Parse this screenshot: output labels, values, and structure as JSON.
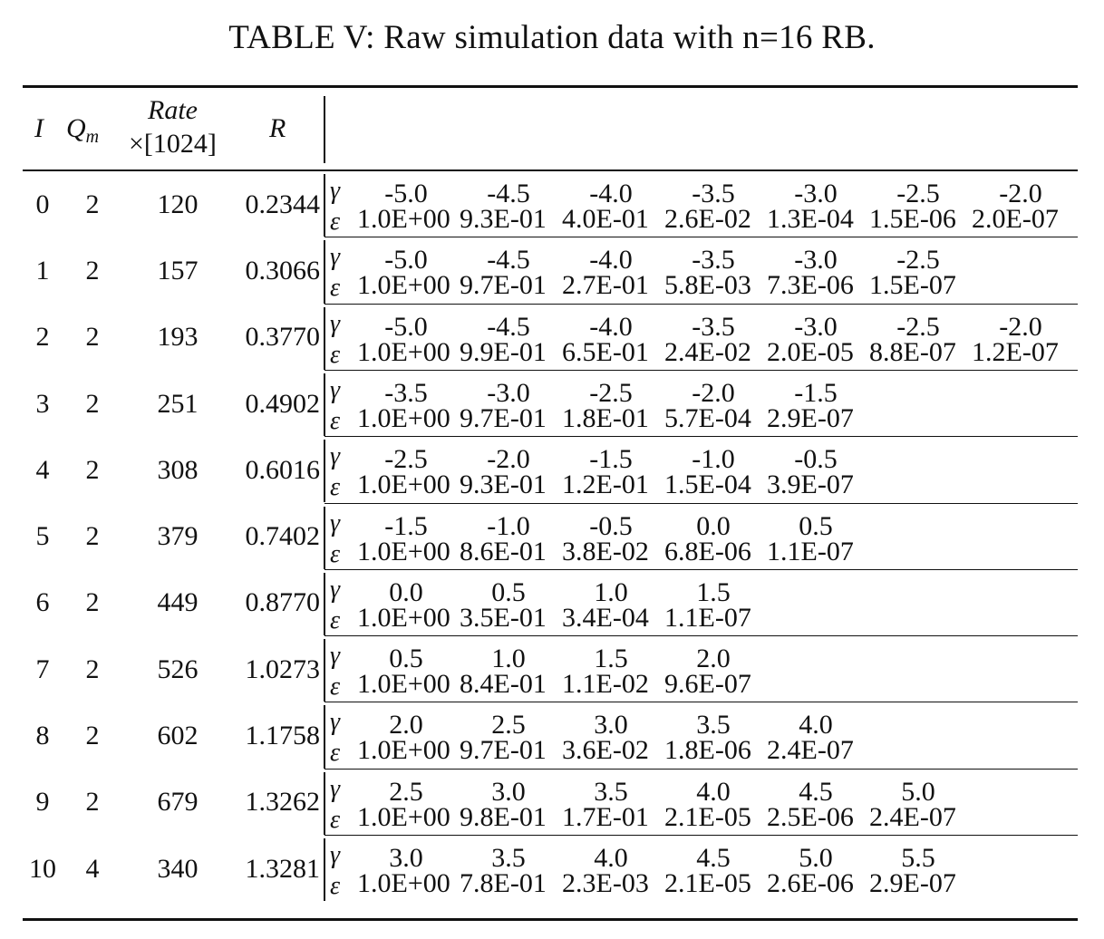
{
  "caption": "TABLE V: Raw simulation data with n=16 RB.",
  "header": {
    "col_i": "I",
    "col_q_base": "Q",
    "col_q_sub": "m",
    "col_rate_top": "Rate",
    "col_rate_bottom": "×[1024]",
    "col_r": "R",
    "gamma_symbol": "γ",
    "eps_symbol": "ε"
  },
  "rows": [
    {
      "i": "0",
      "qm": "2",
      "rate": "120",
      "r": "0.2344",
      "gamma": [
        "-5.0",
        "-4.5",
        "-4.0",
        "-3.5",
        "-3.0",
        "-2.5",
        "-2.0"
      ],
      "eps": [
        "1.0E+00",
        "9.3E-01",
        "4.0E-01",
        "2.6E-02",
        "1.3E-04",
        "1.5E-06",
        "2.0E-07"
      ]
    },
    {
      "i": "1",
      "qm": "2",
      "rate": "157",
      "r": "0.3066",
      "gamma": [
        "-5.0",
        "-4.5",
        "-4.0",
        "-3.5",
        "-3.0",
        "-2.5"
      ],
      "eps": [
        "1.0E+00",
        "9.7E-01",
        "2.7E-01",
        "5.8E-03",
        "7.3E-06",
        "1.5E-07"
      ]
    },
    {
      "i": "2",
      "qm": "2",
      "rate": "193",
      "r": "0.3770",
      "gamma": [
        "-5.0",
        "-4.5",
        "-4.0",
        "-3.5",
        "-3.0",
        "-2.5",
        "-2.0"
      ],
      "eps": [
        "1.0E+00",
        "9.9E-01",
        "6.5E-01",
        "2.4E-02",
        "2.0E-05",
        "8.8E-07",
        "1.2E-07"
      ]
    },
    {
      "i": "3",
      "qm": "2",
      "rate": "251",
      "r": "0.4902",
      "gamma": [
        "-3.5",
        "-3.0",
        "-2.5",
        "-2.0",
        "-1.5"
      ],
      "eps": [
        "1.0E+00",
        "9.7E-01",
        "1.8E-01",
        "5.7E-04",
        "2.9E-07"
      ]
    },
    {
      "i": "4",
      "qm": "2",
      "rate": "308",
      "r": "0.6016",
      "gamma": [
        "-2.5",
        "-2.0",
        "-1.5",
        "-1.0",
        "-0.5"
      ],
      "eps": [
        "1.0E+00",
        "9.3E-01",
        "1.2E-01",
        "1.5E-04",
        "3.9E-07"
      ]
    },
    {
      "i": "5",
      "qm": "2",
      "rate": "379",
      "r": "0.7402",
      "gamma": [
        "-1.5",
        "-1.0",
        "-0.5",
        "0.0",
        "0.5"
      ],
      "eps": [
        "1.0E+00",
        "8.6E-01",
        "3.8E-02",
        "6.8E-06",
        "1.1E-07"
      ]
    },
    {
      "i": "6",
      "qm": "2",
      "rate": "449",
      "r": "0.8770",
      "gamma": [
        "0.0",
        "0.5",
        "1.0",
        "1.5"
      ],
      "eps": [
        "1.0E+00",
        "3.5E-01",
        "3.4E-04",
        "1.1E-07"
      ]
    },
    {
      "i": "7",
      "qm": "2",
      "rate": "526",
      "r": "1.0273",
      "gamma": [
        "0.5",
        "1.0",
        "1.5",
        "2.0"
      ],
      "eps": [
        "1.0E+00",
        "8.4E-01",
        "1.1E-02",
        "9.6E-07"
      ]
    },
    {
      "i": "8",
      "qm": "2",
      "rate": "602",
      "r": "1.1758",
      "gamma": [
        "2.0",
        "2.5",
        "3.0",
        "3.5",
        "4.0"
      ],
      "eps": [
        "1.0E+00",
        "9.7E-01",
        "3.6E-02",
        "1.8E-06",
        "2.4E-07"
      ]
    },
    {
      "i": "9",
      "qm": "2",
      "rate": "679",
      "r": "1.3262",
      "gamma": [
        "2.5",
        "3.0",
        "3.5",
        "4.0",
        "4.5",
        "5.0"
      ],
      "eps": [
        "1.0E+00",
        "9.8E-01",
        "1.7E-01",
        "2.1E-05",
        "2.5E-06",
        "2.4E-07"
      ]
    },
    {
      "i": "10",
      "qm": "4",
      "rate": "340",
      "r": "1.3281",
      "gamma": [
        "3.0",
        "3.5",
        "4.0",
        "4.5",
        "5.0",
        "5.5"
      ],
      "eps": [
        "1.0E+00",
        "7.8E-01",
        "2.3E-03",
        "2.1E-05",
        "2.6E-06",
        "2.9E-07"
      ]
    }
  ]
}
